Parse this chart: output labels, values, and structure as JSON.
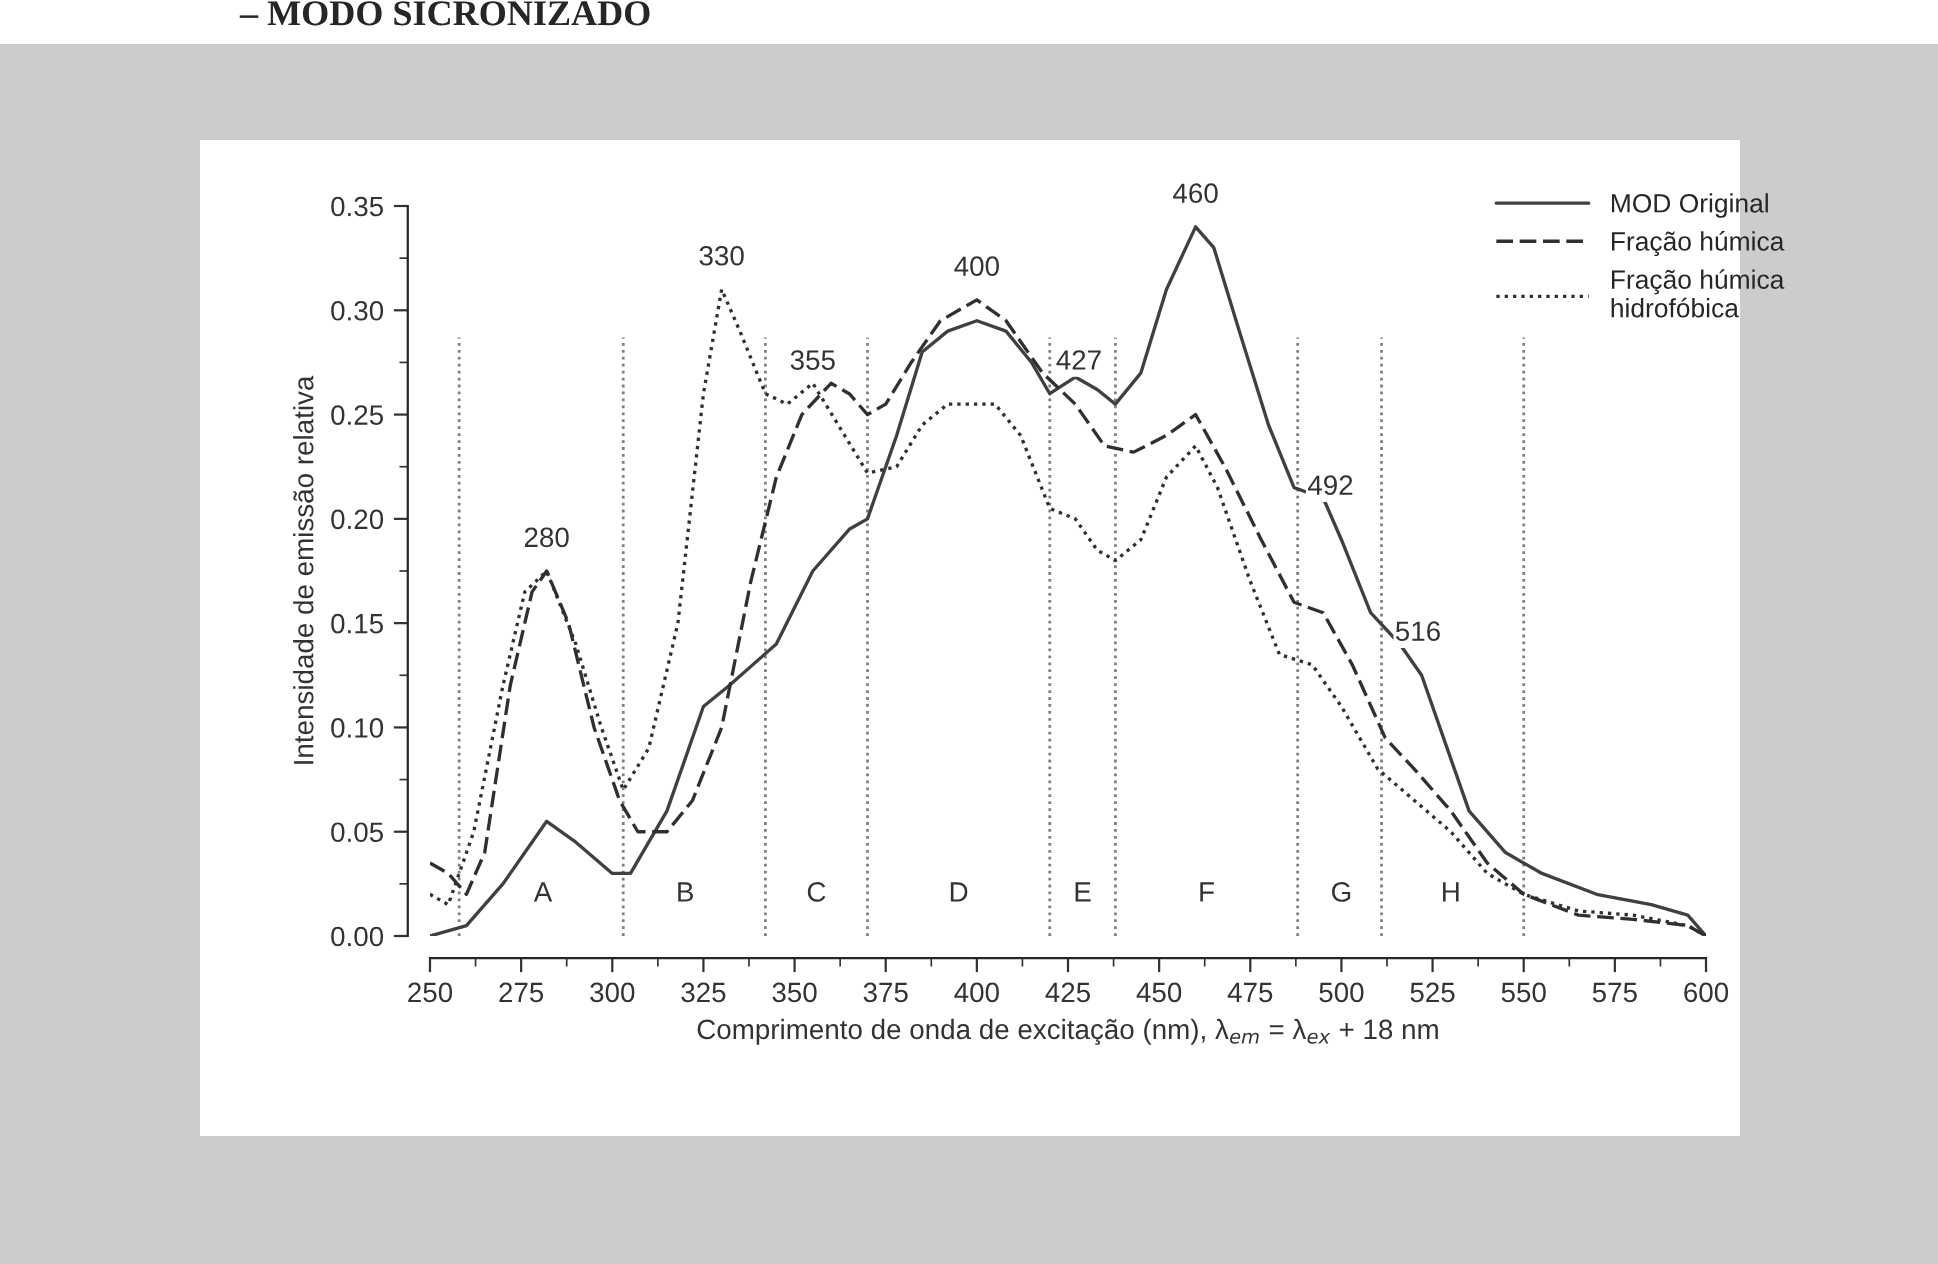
{
  "chart_data": {
    "type": "line",
    "title": "– MODO SICRONIZADO",
    "xlabel": "Comprimento de onda de excitação (nm), λ$_{em}$ = λ$_{ex}$ + 18 nm",
    "ylabel": "Intensidade de emissão relativa",
    "xlim": [
      250,
      600
    ],
    "xticks": [
      250,
      275,
      300,
      325,
      350,
      375,
      400,
      425,
      450,
      475,
      500,
      525,
      550,
      575,
      600
    ],
    "ylim": [
      0,
      0.35
    ],
    "yticks": [
      {
        "value": 0,
        "label": "0.00"
      },
      {
        "value": 0.05,
        "label": "0.05"
      },
      {
        "value": 0.1,
        "label": "0.10"
      },
      {
        "value": 0.15,
        "label": "0.15"
      },
      {
        "value": 0.2,
        "label": "0.20"
      },
      {
        "value": 0.25,
        "label": "0.25"
      },
      {
        "value": 0.3,
        "label": "0.30"
      },
      {
        "value": 0.35,
        "label": "0.35"
      }
    ],
    "grid": false,
    "legend": "top right",
    "marker": "none",
    "series": [
      {
        "name": "MOD Original",
        "color": "#404040",
        "line_style": "solid",
        "x": [
          250,
          260,
          270,
          282,
          290,
          300,
          305,
          315,
          325,
          332,
          345,
          355,
          365,
          370,
          378,
          385,
          392,
          400,
          408,
          415,
          420,
          427,
          433,
          438,
          445,
          452,
          460,
          465,
          472,
          480,
          487,
          495,
          500,
          508,
          516,
          522,
          528,
          535,
          545,
          555,
          570,
          585,
          595,
          600
        ],
        "values": [
          0.0,
          0.005,
          0.025,
          0.055,
          0.045,
          0.03,
          0.03,
          0.06,
          0.11,
          0.12,
          0.14,
          0.175,
          0.195,
          0.2,
          0.24,
          0.28,
          0.29,
          0.295,
          0.29,
          0.275,
          0.26,
          0.268,
          0.262,
          0.255,
          0.27,
          0.31,
          0.34,
          0.33,
          0.29,
          0.245,
          0.215,
          0.21,
          0.19,
          0.155,
          0.14,
          0.125,
          0.095,
          0.06,
          0.04,
          0.03,
          0.02,
          0.015,
          0.01,
          0.0
        ]
      },
      {
        "name": "Fração húmica",
        "color": "#303030",
        "line_style": "dashed",
        "x": [
          250,
          255,
          260,
          265,
          272,
          278,
          282,
          288,
          295,
          302,
          307,
          315,
          322,
          330,
          338,
          345,
          352,
          360,
          365,
          370,
          375,
          382,
          390,
          400,
          408,
          418,
          427,
          435,
          443,
          452,
          460,
          468,
          478,
          487,
          495,
          503,
          512,
          520,
          530,
          540,
          550,
          565,
          580,
          595,
          600
        ],
        "values": [
          0.035,
          0.03,
          0.02,
          0.04,
          0.12,
          0.165,
          0.175,
          0.15,
          0.1,
          0.065,
          0.05,
          0.05,
          0.065,
          0.1,
          0.17,
          0.22,
          0.25,
          0.265,
          0.26,
          0.25,
          0.255,
          0.275,
          0.295,
          0.305,
          0.295,
          0.27,
          0.255,
          0.235,
          0.232,
          0.24,
          0.25,
          0.225,
          0.19,
          0.16,
          0.155,
          0.13,
          0.095,
          0.08,
          0.06,
          0.035,
          0.02,
          0.01,
          0.008,
          0.005,
          0.0
        ]
      },
      {
        "name": "Fração húmica\nhidrofóbica",
        "color": "#303030",
        "line_style": "dotted",
        "x": [
          250,
          255,
          262,
          270,
          276,
          282,
          290,
          297,
          303,
          310,
          318,
          325,
          330,
          335,
          342,
          348,
          355,
          362,
          370,
          378,
          385,
          392,
          405,
          412,
          420,
          427,
          433,
          438,
          445,
          452,
          460,
          466,
          475,
          483,
          492,
          500,
          510,
          520,
          530,
          540,
          550,
          565,
          580,
          595,
          600
        ],
        "values": [
          0.02,
          0.015,
          0.05,
          0.12,
          0.165,
          0.175,
          0.14,
          0.1,
          0.07,
          0.09,
          0.15,
          0.26,
          0.31,
          0.29,
          0.26,
          0.255,
          0.265,
          0.245,
          0.222,
          0.225,
          0.245,
          0.255,
          0.255,
          0.24,
          0.205,
          0.2,
          0.185,
          0.18,
          0.19,
          0.22,
          0.235,
          0.215,
          0.17,
          0.135,
          0.13,
          0.11,
          0.08,
          0.065,
          0.05,
          0.03,
          0.02,
          0.012,
          0.01,
          0.005,
          0.0
        ]
      }
    ],
    "ref_lines": [
      {
        "axis": "x",
        "value": 258,
        "color": "#808080",
        "line_style": "dotted"
      },
      {
        "axis": "x",
        "value": 303,
        "color": "#808080",
        "line_style": "dotted"
      },
      {
        "axis": "x",
        "value": 342,
        "color": "#808080",
        "line_style": "dotted"
      },
      {
        "axis": "x",
        "value": 370,
        "color": "#808080",
        "line_style": "dotted"
      },
      {
        "axis": "x",
        "value": 420,
        "color": "#808080",
        "line_style": "dotted"
      },
      {
        "axis": "x",
        "value": 438,
        "color": "#808080",
        "line_style": "dotted"
      },
      {
        "axis": "x",
        "value": 488,
        "color": "#808080",
        "line_style": "dotted"
      },
      {
        "axis": "x",
        "value": 511,
        "color": "#808080",
        "line_style": "dotted"
      },
      {
        "axis": "x",
        "value": 550,
        "color": "#808080",
        "line_style": "dotted"
      }
    ],
    "annotations": [
      {
        "text": "280",
        "x": 282,
        "y": 0.19
      },
      {
        "text": "330",
        "x": 330,
        "y": 0.325
      },
      {
        "text": "355",
        "x": 355,
        "y": 0.275
      },
      {
        "text": "400",
        "x": 400,
        "y": 0.32
      },
      {
        "text": "427",
        "x": 428,
        "y": 0.275
      },
      {
        "text": "460",
        "x": 460,
        "y": 0.355
      },
      {
        "text": "492",
        "x": 497,
        "y": 0.215
      },
      {
        "text": "516",
        "x": 521,
        "y": 0.145
      },
      {
        "text": "A",
        "x": 281,
        "y": 0.02
      },
      {
        "text": "B",
        "x": 320,
        "y": 0.02
      },
      {
        "text": "C",
        "x": 356,
        "y": 0.02
      },
      {
        "text": "D",
        "x": 395,
        "y": 0.02
      },
      {
        "text": "E",
        "x": 429,
        "y": 0.02
      },
      {
        "text": "F",
        "x": 463,
        "y": 0.02
      },
      {
        "text": "G",
        "x": 500,
        "y": 0.02
      },
      {
        "text": "H",
        "x": 530,
        "y": 0.02
      }
    ]
  }
}
